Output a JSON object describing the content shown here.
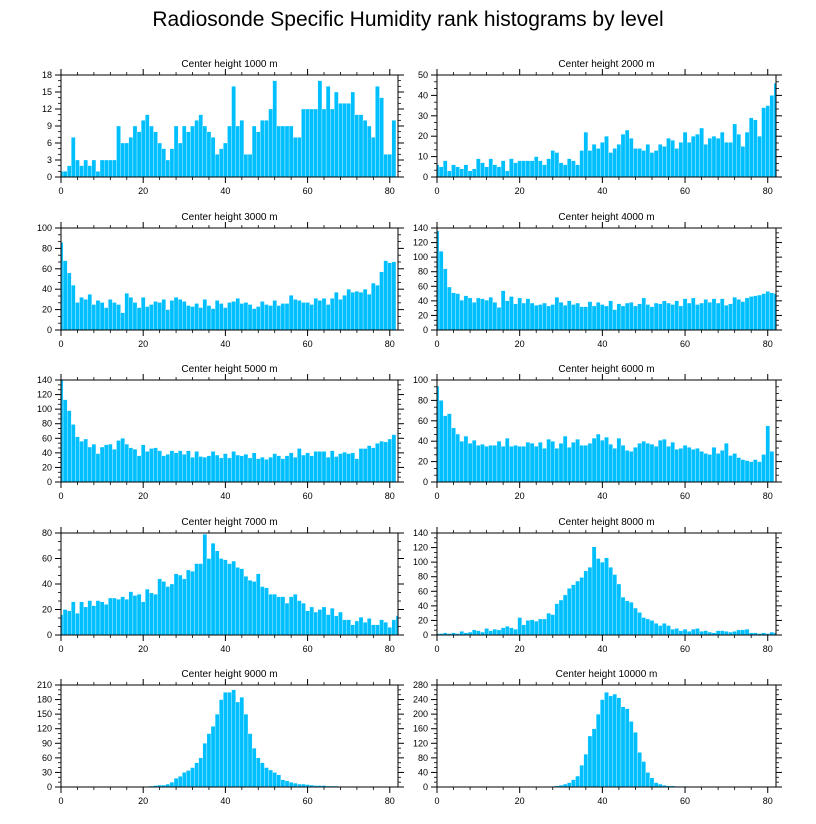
{
  "title": "Radiosonde Specific Humidity rank histograms by level",
  "colors": {
    "bar": "#00BFFF",
    "bar_edge": "#ffffff",
    "axis": "#000000"
  },
  "chart_data": [
    {
      "type": "bar",
      "title": "Center height 1000 m",
      "x_start": 0,
      "xlim": [
        0,
        82
      ],
      "xticks": [
        0,
        20,
        40,
        60,
        80
      ],
      "ylim": [
        0,
        18
      ],
      "yticks": [
        0,
        3,
        6,
        9,
        12,
        15,
        18
      ],
      "values": [
        1,
        1,
        2,
        7,
        3,
        2,
        3,
        2,
        3,
        1,
        3,
        3,
        3,
        3,
        9,
        6,
        6,
        7,
        9,
        8,
        10,
        11,
        9,
        8,
        6,
        5,
        3,
        5,
        9,
        6,
        9,
        8,
        9,
        10,
        11,
        9,
        8,
        7,
        4,
        5,
        6,
        9,
        16,
        9,
        10,
        4,
        4,
        9,
        8,
        10,
        10,
        12,
        17,
        9,
        9,
        9,
        9,
        7,
        7,
        12,
        12,
        12,
        12,
        17,
        12,
        16,
        12,
        15,
        13,
        13,
        13,
        15,
        11,
        11,
        10,
        9,
        7,
        16,
        14,
        4,
        4,
        10
      ]
    },
    {
      "type": "bar",
      "title": "Center height 2000 m",
      "x_start": 0,
      "xlim": [
        0,
        82
      ],
      "xticks": [
        0,
        20,
        40,
        60,
        80
      ],
      "ylim": [
        0,
        50
      ],
      "yticks": [
        0,
        10,
        20,
        30,
        40,
        50
      ],
      "values": [
        6,
        5,
        8,
        3,
        6,
        5,
        4,
        6,
        3,
        4,
        9,
        7,
        5,
        9,
        6,
        5,
        8,
        3,
        9,
        7,
        8,
        8,
        8,
        8,
        10,
        8,
        6,
        9,
        13,
        12,
        7,
        6,
        9,
        8,
        6,
        13,
        22,
        13,
        16,
        14,
        17,
        20,
        12,
        14,
        16,
        21,
        23,
        19,
        14,
        14,
        13,
        16,
        12,
        13,
        16,
        15,
        19,
        18,
        14,
        17,
        22,
        17,
        20,
        21,
        24,
        16,
        19,
        20,
        19,
        22,
        17,
        17,
        26,
        21,
        15,
        22,
        29,
        28,
        20,
        34,
        35,
        40,
        46
      ]
    },
    {
      "type": "bar",
      "title": "Center height 3000 m",
      "x_start": 0,
      "xlim": [
        0,
        82
      ],
      "xticks": [
        0,
        20,
        40,
        60,
        80
      ],
      "ylim": [
        0,
        100
      ],
      "yticks": [
        0,
        20,
        40,
        60,
        80,
        100
      ],
      "values": [
        86,
        68,
        56,
        44,
        27,
        32,
        30,
        35,
        25,
        29,
        27,
        22,
        30,
        27,
        25,
        17,
        36,
        32,
        27,
        22,
        32,
        23,
        25,
        28,
        27,
        30,
        20,
        29,
        32,
        30,
        28,
        24,
        23,
        26,
        22,
        30,
        24,
        21,
        29,
        26,
        22,
        27,
        28,
        31,
        26,
        27,
        25,
        21,
        23,
        28,
        25,
        24,
        29,
        24,
        26,
        26,
        34,
        30,
        29,
        27,
        27,
        25,
        31,
        29,
        31,
        25,
        31,
        37,
        30,
        34,
        40,
        37,
        38,
        37,
        40,
        35,
        46,
        44,
        57,
        68,
        66,
        67
      ]
    },
    {
      "type": "bar",
      "title": "Center height 4000 m",
      "x_start": 0,
      "xlim": [
        0,
        82
      ],
      "xticks": [
        0,
        20,
        40,
        60,
        80
      ],
      "ylim": [
        0,
        140
      ],
      "yticks": [
        0,
        20,
        40,
        60,
        80,
        100,
        120,
        140
      ],
      "values": [
        136,
        108,
        84,
        59,
        51,
        50,
        41,
        47,
        44,
        38,
        44,
        43,
        41,
        45,
        38,
        31,
        54,
        40,
        46,
        36,
        44,
        37,
        43,
        37,
        34,
        35,
        37,
        33,
        35,
        45,
        38,
        34,
        40,
        35,
        37,
        32,
        32,
        39,
        33,
        38,
        35,
        33,
        40,
        28,
        36,
        33,
        37,
        38,
        33,
        36,
        44,
        35,
        32,
        37,
        36,
        40,
        37,
        35,
        40,
        33,
        43,
        37,
        44,
        35,
        37,
        42,
        38,
        43,
        37,
        43,
        34,
        36,
        45,
        42,
        39,
        44,
        46,
        47,
        48,
        50,
        53,
        51,
        50
      ]
    },
    {
      "type": "bar",
      "title": "Center height 5000 m",
      "x_start": 0,
      "xlim": [
        0,
        82
      ],
      "xticks": [
        0,
        20,
        40,
        60,
        80
      ],
      "ylim": [
        0,
        140
      ],
      "yticks": [
        0,
        20,
        40,
        60,
        80,
        100,
        120,
        140
      ],
      "values": [
        140,
        113,
        98,
        79,
        62,
        56,
        59,
        48,
        52,
        39,
        48,
        51,
        52,
        45,
        57,
        60,
        52,
        47,
        45,
        36,
        51,
        42,
        46,
        47,
        43,
        36,
        38,
        43,
        40,
        43,
        38,
        43,
        34,
        42,
        35,
        34,
        36,
        42,
        37,
        33,
        39,
        33,
        42,
        37,
        36,
        38,
        33,
        40,
        32,
        34,
        31,
        34,
        39,
        36,
        32,
        36,
        40,
        34,
        46,
        37,
        40,
        36,
        42,
        42,
        42,
        34,
        43,
        35,
        39,
        41,
        39,
        40,
        32,
        46,
        46,
        50,
        47,
        53,
        56,
        55,
        59,
        65
      ]
    },
    {
      "type": "bar",
      "title": "Center height 6000 m",
      "x_start": 0,
      "xlim": [
        0,
        82
      ],
      "xticks": [
        0,
        20,
        40,
        60,
        80
      ],
      "ylim": [
        0,
        100
      ],
      "yticks": [
        0,
        20,
        40,
        60,
        80,
        100
      ],
      "values": [
        94,
        80,
        65,
        67,
        53,
        47,
        40,
        45,
        38,
        41,
        36,
        37,
        35,
        36,
        36,
        40,
        35,
        43,
        35,
        36,
        35,
        35,
        39,
        38,
        35,
        39,
        33,
        42,
        40,
        33,
        38,
        45,
        34,
        39,
        42,
        36,
        36,
        38,
        43,
        47,
        41,
        44,
        37,
        33,
        43,
        36,
        31,
        30,
        34,
        38,
        40,
        38,
        37,
        35,
        41,
        42,
        35,
        39,
        32,
        33,
        36,
        34,
        32,
        33,
        30,
        28,
        27,
        34,
        28,
        31,
        38,
        26,
        28,
        24,
        22,
        21,
        20,
        22,
        20,
        27,
        55,
        30
      ]
    },
    {
      "type": "bar",
      "title": "Center height 7000 m",
      "x_start": 0,
      "xlim": [
        0,
        82
      ],
      "xticks": [
        0,
        20,
        40,
        60,
        80
      ],
      "ylim": [
        0,
        80
      ],
      "yticks": [
        0,
        20,
        40,
        60,
        80
      ],
      "values": [
        16,
        20,
        19,
        26,
        17,
        26,
        22,
        27,
        23,
        27,
        26,
        24,
        29,
        29,
        28,
        30,
        28,
        34,
        31,
        32,
        26,
        36,
        33,
        32,
        44,
        42,
        38,
        40,
        48,
        47,
        44,
        51,
        50,
        56,
        56,
        79,
        60,
        72,
        66,
        60,
        59,
        56,
        58,
        53,
        52,
        46,
        43,
        42,
        48,
        38,
        37,
        32,
        32,
        30,
        30,
        25,
        30,
        32,
        27,
        25,
        19,
        22,
        18,
        20,
        22,
        16,
        21,
        15,
        18,
        12,
        12,
        8,
        11,
        14,
        10,
        13,
        8,
        8,
        12,
        10,
        6,
        12,
        15
      ]
    },
    {
      "type": "bar",
      "title": "Center height 8000 m",
      "x_start": 0,
      "xlim": [
        0,
        82
      ],
      "xticks": [
        0,
        20,
        40,
        60,
        80
      ],
      "ylim": [
        0,
        140
      ],
      "yticks": [
        0,
        20,
        40,
        60,
        80,
        100,
        120,
        140
      ],
      "values": [
        2,
        2,
        3,
        2,
        3,
        2,
        5,
        3,
        4,
        7,
        6,
        4,
        9,
        6,
        8,
        7,
        10,
        12,
        10,
        8,
        24,
        14,
        20,
        21,
        19,
        22,
        22,
        30,
        28,
        43,
        48,
        55,
        64,
        69,
        74,
        79,
        88,
        93,
        121,
        105,
        100,
        106,
        93,
        83,
        70,
        52,
        47,
        45,
        37,
        31,
        24,
        22,
        20,
        16,
        13,
        16,
        13,
        8,
        9,
        6,
        8,
        5,
        8,
        9,
        5,
        6,
        4,
        3,
        6,
        6,
        5,
        4,
        5,
        7,
        7,
        8,
        3,
        3,
        2,
        3,
        2,
        4,
        3
      ]
    },
    {
      "type": "bar",
      "title": "Center height 9000 m",
      "x_start": 1,
      "xlim": [
        0,
        82
      ],
      "xticks": [
        0,
        20,
        40,
        60,
        80
      ],
      "ylim": [
        0,
        210
      ],
      "yticks": [
        0,
        30,
        60,
        90,
        120,
        150,
        180,
        210
      ],
      "values": [
        0,
        0,
        0,
        0,
        0,
        0,
        0,
        0,
        0,
        0,
        0,
        0,
        0,
        0,
        0,
        0,
        0,
        0,
        0,
        0,
        1,
        2,
        3,
        4,
        4,
        6,
        10,
        18,
        22,
        30,
        34,
        40,
        50,
        60,
        90,
        110,
        125,
        150,
        180,
        195,
        195,
        200,
        175,
        185,
        150,
        110,
        80,
        60,
        50,
        40,
        35,
        30,
        25,
        15,
        13,
        10,
        8,
        6,
        6,
        5,
        4,
        3,
        3,
        3,
        2,
        2,
        2,
        1,
        1,
        1,
        1,
        1,
        1,
        0,
        0,
        0,
        0,
        0,
        0,
        0,
        0,
        0
      ]
    },
    {
      "type": "bar",
      "title": "Center height 10000 m",
      "x_start": 1,
      "xlim": [
        0,
        82
      ],
      "xticks": [
        0,
        20,
        40,
        60,
        80
      ],
      "ylim": [
        0,
        280
      ],
      "yticks": [
        0,
        40,
        80,
        120,
        160,
        200,
        240,
        280
      ],
      "values": [
        0,
        0,
        0,
        0,
        0,
        0,
        0,
        0,
        0,
        0,
        0,
        0,
        0,
        0,
        0,
        0,
        0,
        0,
        0,
        0,
        0,
        0,
        0,
        0,
        0,
        0,
        1,
        2,
        3,
        5,
        8,
        12,
        20,
        30,
        60,
        90,
        140,
        160,
        200,
        240,
        260,
        250,
        255,
        245,
        220,
        215,
        180,
        150,
        95,
        70,
        40,
        25,
        12,
        8,
        5,
        3,
        3,
        2,
        2,
        2,
        1,
        1,
        1,
        1,
        1,
        1,
        1,
        0,
        0,
        0,
        0,
        0,
        0,
        0,
        0,
        0,
        0,
        0,
        0,
        0,
        0,
        0
      ]
    }
  ]
}
